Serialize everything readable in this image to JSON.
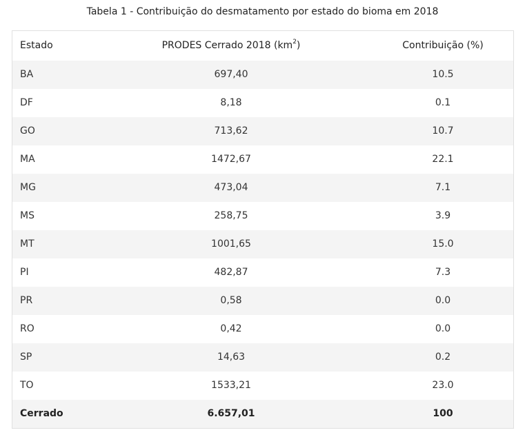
{
  "caption": "Tabela 1 - Contribuição do desmatamento por estado do bioma em 2018",
  "headers": {
    "estado": "Estado",
    "prodes_prefix": "PRODES Cerrado 2018 (km",
    "prodes_sup": "2",
    "prodes_suffix": ")",
    "contribuicao": "Contribuição (%)"
  },
  "rows": [
    {
      "estado": "BA",
      "prodes": "697,40",
      "contrib": "10.5"
    },
    {
      "estado": "DF",
      "prodes": "8,18",
      "contrib": "0.1"
    },
    {
      "estado": "GO",
      "prodes": "713,62",
      "contrib": "10.7"
    },
    {
      "estado": "MA",
      "prodes": "1472,67",
      "contrib": "22.1"
    },
    {
      "estado": "MG",
      "prodes": "473,04",
      "contrib": "7.1"
    },
    {
      "estado": "MS",
      "prodes": "258,75",
      "contrib": "3.9"
    },
    {
      "estado": "MT",
      "prodes": "1001,65",
      "contrib": "15.0"
    },
    {
      "estado": "PI",
      "prodes": "482,87",
      "contrib": "7.3"
    },
    {
      "estado": "PR",
      "prodes": "0,58",
      "contrib": "0.0"
    },
    {
      "estado": "RO",
      "prodes": "0,42",
      "contrib": "0.0"
    },
    {
      "estado": "SP",
      "prodes": "14,63",
      "contrib": "0.2"
    },
    {
      "estado": "TO",
      "prodes": "1533,21",
      "contrib": "23.0"
    }
  ],
  "total": {
    "estado": "Cerrado",
    "prodes": "6.657,01",
    "contrib": "100"
  },
  "colors": {
    "stripe": "#f4f4f4",
    "border": "#e0e0e0",
    "text": "#333333"
  }
}
